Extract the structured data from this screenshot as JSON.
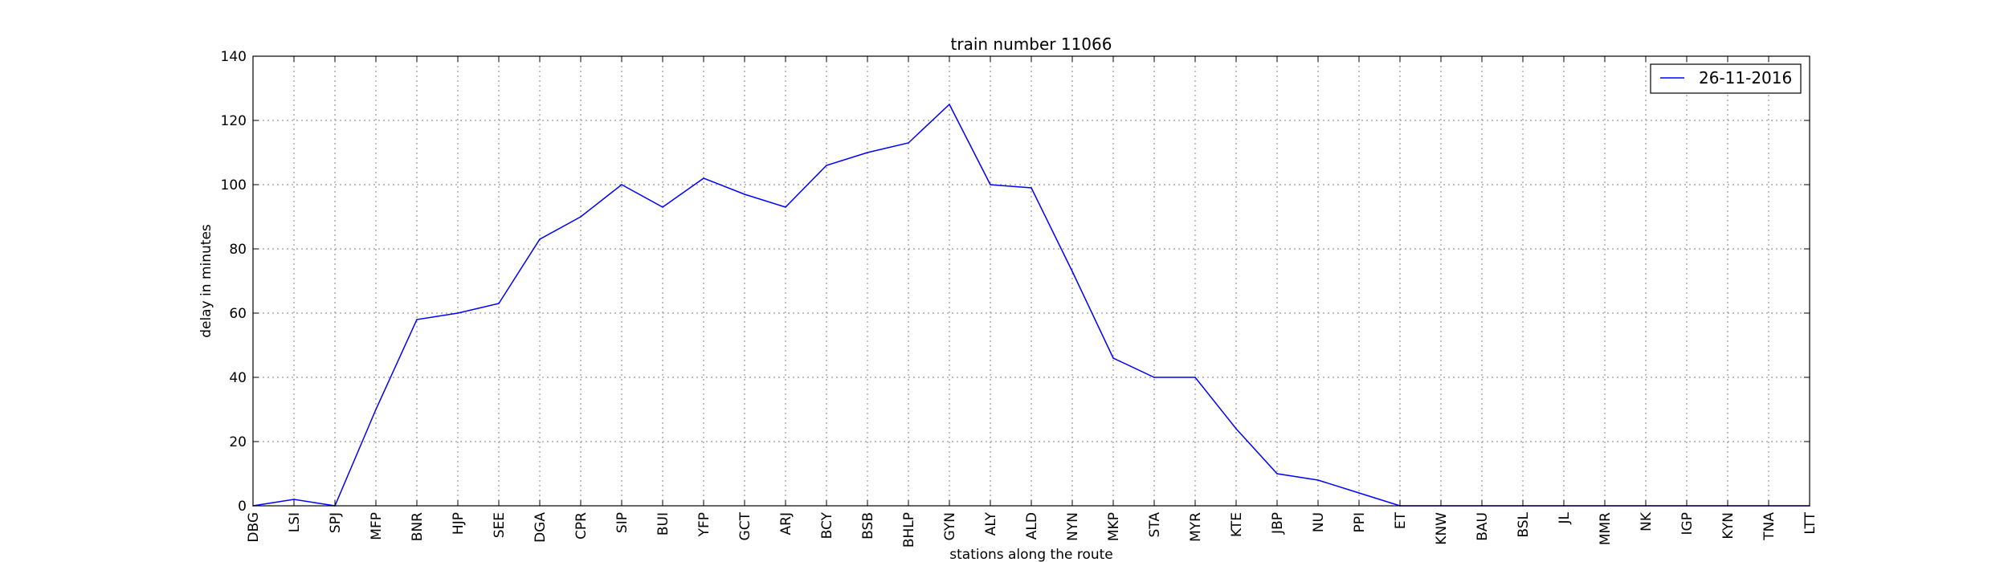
{
  "chart_data": {
    "type": "line",
    "title": "train number 11066",
    "xlabel": "stations along the route",
    "ylabel": "delay in minutes",
    "categories": [
      "DBG",
      "LSI",
      "SPJ",
      "MFP",
      "BNR",
      "HJP",
      "SEE",
      "DGA",
      "CPR",
      "SIP",
      "BUI",
      "YFP",
      "GCT",
      "ARJ",
      "BCY",
      "BSB",
      "BHLP",
      "GYN",
      "ALY",
      "ALD",
      "NYN",
      "MKP",
      "STA",
      "MYR",
      "KTE",
      "JBP",
      "NU",
      "PPI",
      "ET",
      "KNW",
      "BAU",
      "BSL",
      "JL",
      "MMR",
      "NK",
      "IGP",
      "KYN",
      "TNA",
      "LTT"
    ],
    "series": [
      {
        "name": "26-11-2016",
        "color": "#0000ff",
        "values": [
          0,
          2,
          0,
          30,
          58,
          60,
          63,
          83,
          90,
          100,
          93,
          102,
          97,
          93,
          106,
          110,
          113,
          125,
          100,
          99,
          73,
          46,
          40,
          40,
          24,
          10,
          8,
          4,
          0,
          0,
          0,
          0,
          0,
          0,
          0,
          0,
          0,
          0,
          0
        ]
      }
    ],
    "ylim": [
      0,
      140
    ],
    "yticks": [
      0,
      20,
      40,
      60,
      80,
      100,
      120,
      140
    ],
    "grid": true,
    "legend_position": "top-right"
  }
}
